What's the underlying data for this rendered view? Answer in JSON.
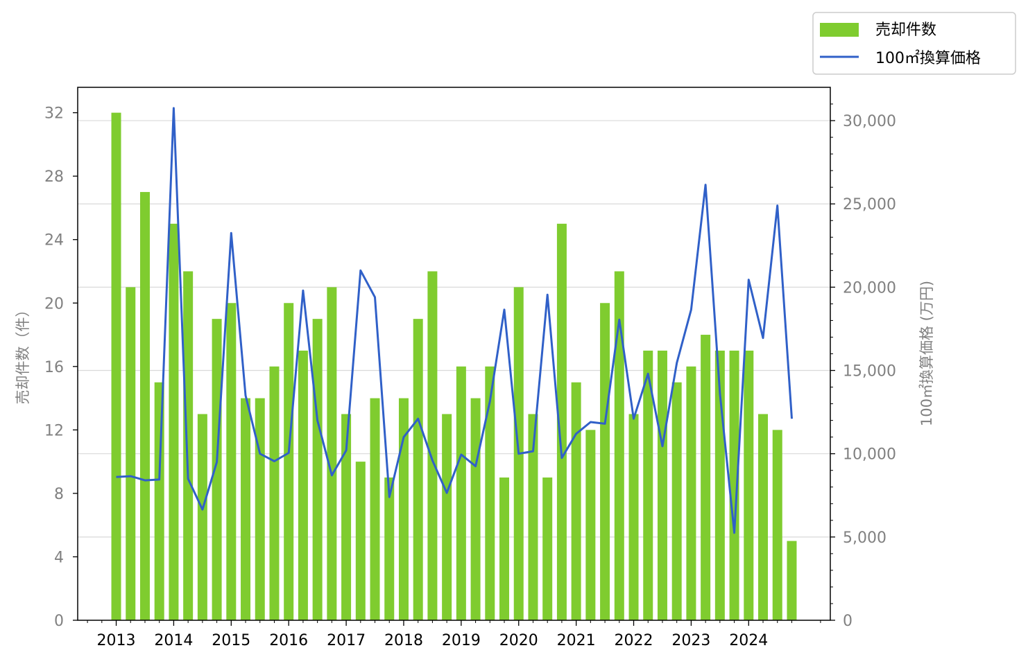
{
  "chart_data": {
    "type": "bar+line",
    "x_tick_labels": [
      "2013",
      "2014",
      "2015",
      "2016",
      "2017",
      "2018",
      "2019",
      "2020",
      "2021",
      "2022",
      "2023",
      "2024"
    ],
    "left_axis": {
      "label": "売却件数（件）",
      "ylim": [
        0,
        33.6
      ],
      "ticks": [
        "0",
        "4",
        "8",
        "12",
        "16",
        "20",
        "24",
        "28",
        "32"
      ]
    },
    "right_axis": {
      "label": "100㎡換算価格 (万円)",
      "ylim": [
        0,
        32000
      ],
      "ticks": [
        "0",
        "5,000",
        "10,000",
        "15,000",
        "20,000",
        "25,000",
        "30,000"
      ]
    },
    "legend": {
      "position": "top-right",
      "items": [
        {
          "label": "売却件数",
          "kind": "bar",
          "color": "#7fcc2f"
        },
        {
          "label": "100㎡換算価格",
          "kind": "line",
          "color": "#3060c8"
        }
      ]
    },
    "grid": "horizontal (right axis)",
    "series": [
      {
        "name": "売却件数",
        "axis": "left",
        "color": "#7fcc2f",
        "x": [
          2013.0,
          2013.25,
          2013.5,
          2013.75,
          2014.0,
          2014.25,
          2014.5,
          2014.75,
          2015.0,
          2015.25,
          2015.5,
          2015.75,
          2016.0,
          2016.25,
          2016.5,
          2016.75,
          2017.0,
          2017.25,
          2017.5,
          2017.75,
          2018.0,
          2018.25,
          2018.5,
          2018.75,
          2019.0,
          2019.25,
          2019.5,
          2019.75,
          2020.0,
          2020.25,
          2020.5,
          2020.75,
          2021.0,
          2021.25,
          2021.5,
          2021.75,
          2022.0,
          2022.25,
          2022.5,
          2022.75,
          2023.0,
          2023.25,
          2023.5,
          2023.75,
          2024.0,
          2024.25,
          2024.5,
          2024.75
        ],
        "values": [
          32,
          21,
          27,
          15,
          25,
          22,
          13,
          19,
          20,
          14,
          14,
          16,
          20,
          17,
          19,
          21,
          13,
          10,
          14,
          9,
          14,
          19,
          22,
          13,
          16,
          14,
          16,
          9,
          21,
          13,
          9,
          25,
          15,
          12,
          20,
          22,
          13,
          17,
          17,
          15,
          16,
          18,
          17,
          17,
          17,
          13,
          12,
          5
        ]
      },
      {
        "name": "100㎡換算価格",
        "axis": "right",
        "color": "#3060c8",
        "x": [
          2013.0,
          2013.25,
          2013.5,
          2013.75,
          2014.0,
          2014.25,
          2014.5,
          2014.75,
          2015.0,
          2015.25,
          2015.5,
          2015.75,
          2016.0,
          2016.25,
          2016.5,
          2016.75,
          2017.0,
          2017.25,
          2017.5,
          2017.75,
          2018.0,
          2018.25,
          2018.5,
          2018.75,
          2019.0,
          2019.25,
          2019.5,
          2019.75,
          2020.0,
          2020.25,
          2020.5,
          2020.75,
          2021.0,
          2021.25,
          2021.5,
          2021.75,
          2022.0,
          2022.25,
          2022.5,
          2022.75,
          2023.0,
          2023.25,
          2023.5,
          2023.75,
          2024.0,
          2024.25,
          2024.5,
          2024.75
        ],
        "values": [
          8600,
          8650,
          8400,
          8450,
          30750,
          8500,
          6650,
          9500,
          23250,
          13500,
          10000,
          9550,
          10050,
          19800,
          12000,
          8700,
          10200,
          21000,
          19400,
          7400,
          11000,
          12100,
          9600,
          7650,
          9950,
          9250,
          13150,
          18650,
          10000,
          10150,
          19550,
          9750,
          11200,
          11900,
          11800,
          18050,
          12100,
          14800,
          10450,
          15450,
          18650,
          26150,
          13600,
          5250,
          20450,
          16950,
          24900,
          12100
        ]
      }
    ]
  }
}
